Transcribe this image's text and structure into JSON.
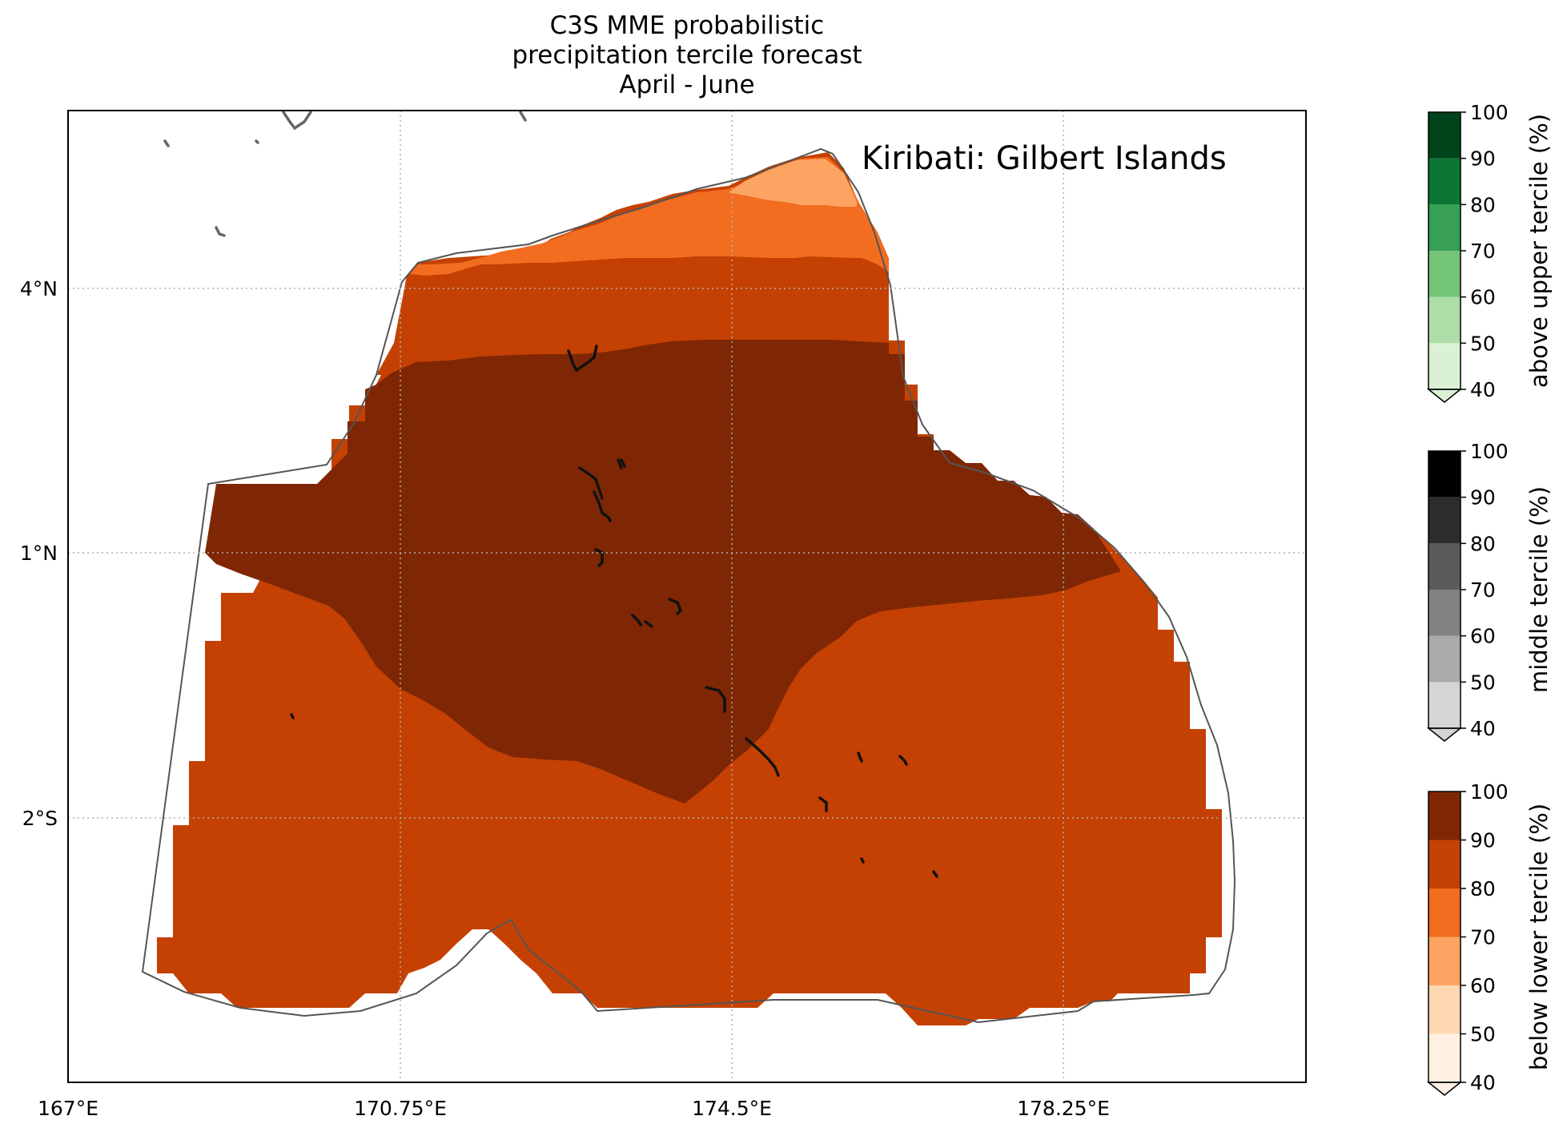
{
  "title": {
    "line1": "C3S MME probabilistic",
    "line2": "precipitation tercile forecast",
    "line3": "April - June"
  },
  "region_label": "Kiribati: Gilbert Islands",
  "map": {
    "x_ticks": [
      "167°E",
      "170.75°E",
      "174.5°E",
      "178.25°E"
    ],
    "y_ticks": [
      "4°N",
      "1°N",
      "2°S"
    ],
    "gridlines": true
  },
  "colorbars": [
    {
      "label": "above upper tercile (%)",
      "ticks": [
        "40",
        "50",
        "60",
        "70",
        "80",
        "90",
        "100"
      ],
      "colors": [
        "#dbf1d6",
        "#addea7",
        "#73c476",
        "#37a055",
        "#0c7734",
        "#00441b"
      ]
    },
    {
      "label": "middle tercile (%)",
      "ticks": [
        "40",
        "50",
        "60",
        "70",
        "80",
        "90",
        "100"
      ],
      "colors": [
        "#d5d5d5",
        "#aaaaaa",
        "#828282",
        "#5a5a5a",
        "#2c2c2c",
        "#000000"
      ]
    },
    {
      "label": "below lower tercile (%)",
      "ticks": [
        "40",
        "50",
        "60",
        "70",
        "80",
        "90",
        "100"
      ],
      "colors": [
        "#fff0e2",
        "#fdd8b3",
        "#fda462",
        "#f26d1f",
        "#c44103",
        "#7f2704"
      ]
    }
  ],
  "forecast_colors": {
    "p60_70": "#fda462",
    "p70_80": "#f26d1f",
    "p80_90": "#c44103",
    "p90_100": "#7f2704"
  }
}
